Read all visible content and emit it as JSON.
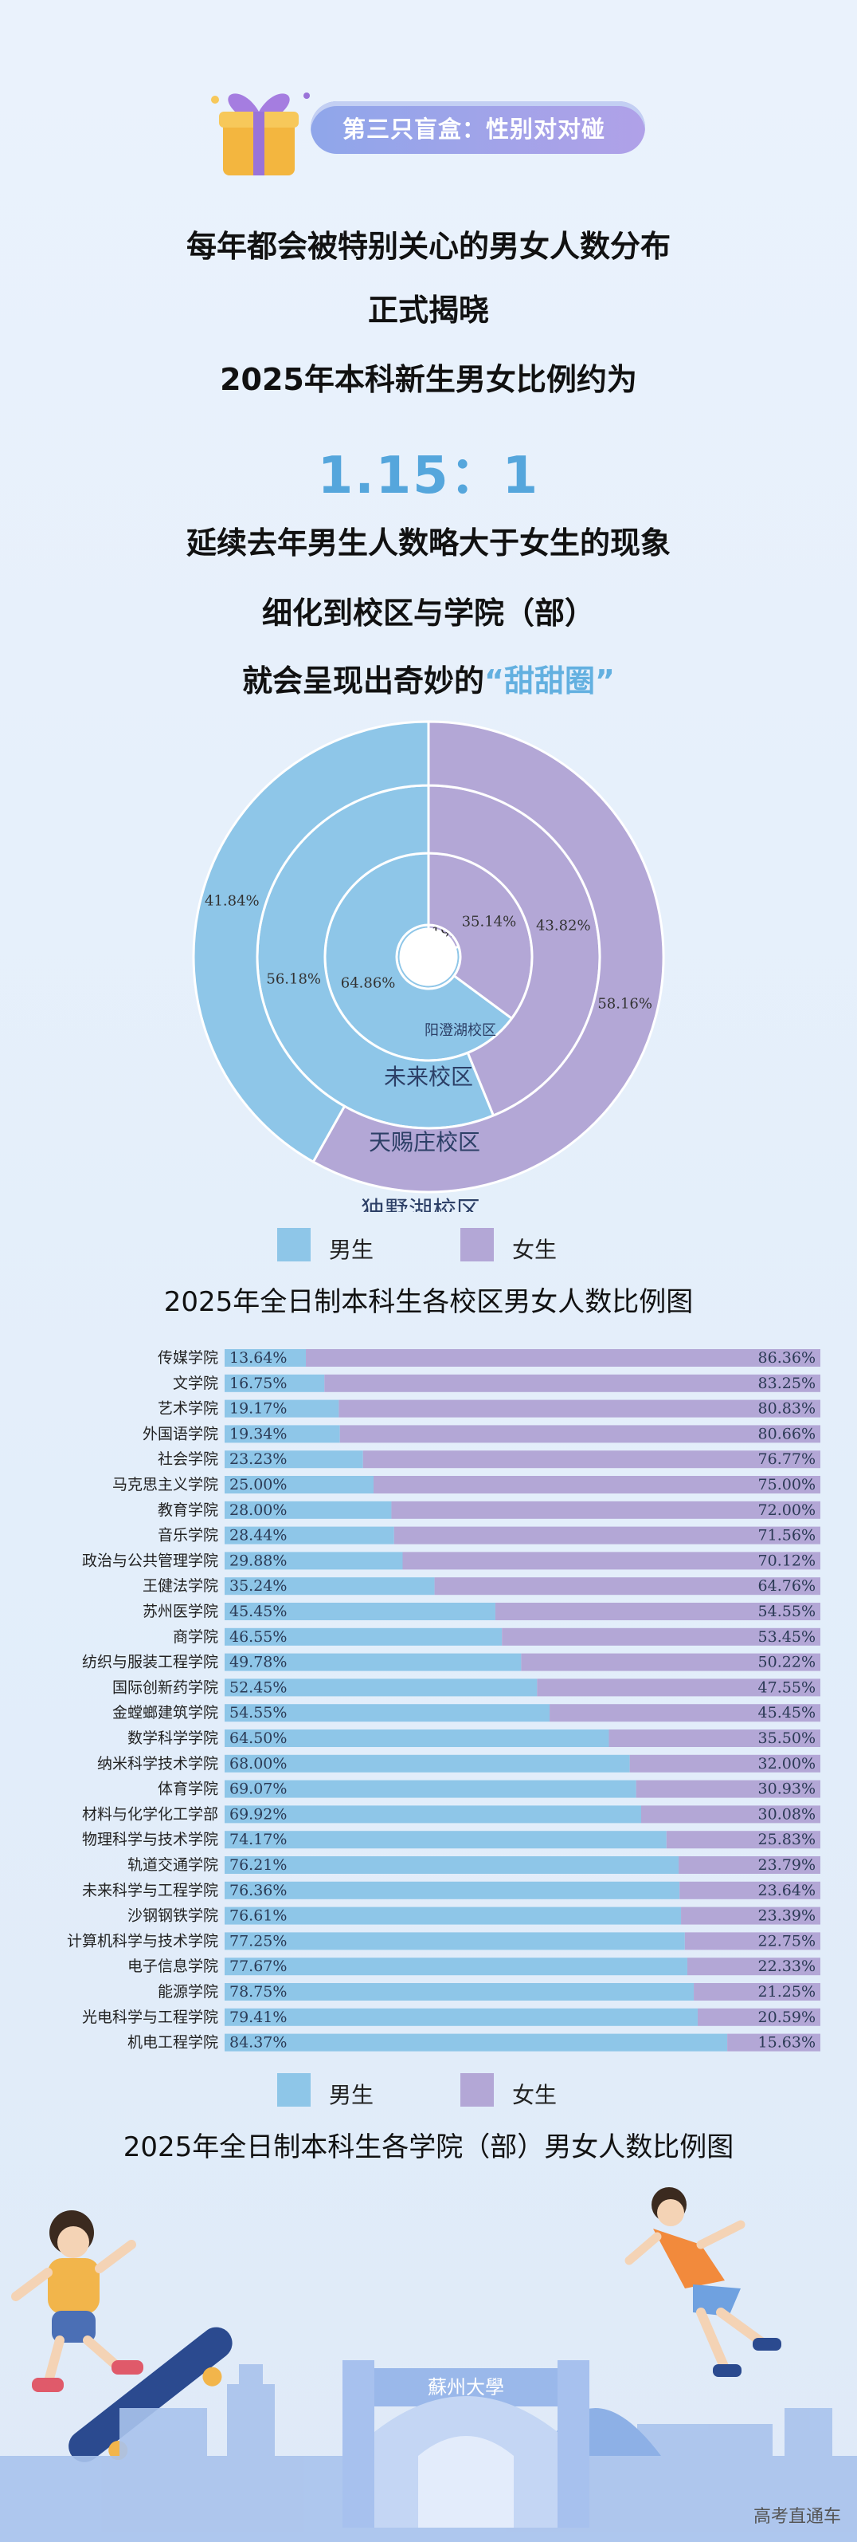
{
  "banner": {
    "label": "第三只盲盒：性别对对碰"
  },
  "intro": {
    "line1": "每年都会被特别关心的男女人数分布",
    "line2": "正式揭晓",
    "line3": "2025年本科新生男女比例约为",
    "ratio": "1.15：1",
    "line4": "延续去年男生人数略大于女生的现象",
    "line5": "细化到校区与学院（部）",
    "line6a": "就会呈现出奇妙的",
    "line6b": "“甜甜圈”"
  },
  "colors": {
    "male": "#8ec6e8",
    "female": "#b3a7d6"
  },
  "legend": {
    "male": "男生",
    "female": "女生"
  },
  "chart_data": [
    {
      "type": "pie",
      "title": "2025年全日制本科生各校区男女人数比例图",
      "rings": [
        {
          "name": "阳澄湖校区",
          "male": 80.17,
          "female": 19.83,
          "male_label": "80.17%",
          "female_label": "19.83%"
        },
        {
          "name": "未来校区",
          "male": 64.86,
          "female": 35.14,
          "male_label": "64.86%",
          "female_label": "35.14%"
        },
        {
          "name": "天赐庄校区",
          "male": 56.18,
          "female": 43.82,
          "male_label": "56.18%",
          "female_label": "43.82%"
        },
        {
          "name": "独墅湖校区",
          "male": 41.84,
          "female": 58.16,
          "male_label": "41.84%",
          "female_label": "58.16%"
        }
      ],
      "legend": [
        "男生",
        "女生"
      ]
    },
    {
      "type": "bar",
      "orientation": "horizontal-stacked",
      "title": "2025年全日制本科生各学院（部）男女人数比例图",
      "categories": [
        "传媒学院",
        "文学院",
        "艺术学院",
        "外国语学院",
        "社会学院",
        "马克思主义学院",
        "教育学院",
        "音乐学院",
        "政治与公共管理学院",
        "王健法学院",
        "苏州医学院",
        "商学院",
        "纺织与服装工程学院",
        "国际创新药学院",
        "金螳螂建筑学院",
        "数学科学学院",
        "纳米科学技术学院",
        "体育学院",
        "材料与化学化工学部",
        "物理科学与技术学院",
        "轨道交通学院",
        "未来科学与工程学院",
        "沙钢钢铁学院",
        "计算机科学与技术学院",
        "电子信息学院",
        "能源学院",
        "光电科学与工程学院",
        "机电工程学院"
      ],
      "series": [
        {
          "name": "男生",
          "values": [
            13.64,
            16.75,
            19.17,
            19.34,
            23.23,
            25.0,
            28.0,
            28.44,
            29.88,
            35.24,
            45.45,
            46.55,
            49.78,
            52.45,
            54.55,
            64.5,
            68.0,
            69.07,
            69.92,
            74.17,
            76.21,
            76.36,
            76.61,
            77.25,
            77.67,
            78.75,
            79.41,
            84.37
          ],
          "labels": [
            "13.64%",
            "16.75%",
            "19.17%",
            "19.34%",
            "23.23%",
            "25.00%",
            "28.00%",
            "28.44%",
            "29.88%",
            "35.24%",
            "45.45%",
            "46.55%",
            "49.78%",
            "52.45%",
            "54.55%",
            "64.50%",
            "68.00%",
            "69.07%",
            "69.92%",
            "74.17%",
            "76.21%",
            "76.36%",
            "76.61%",
            "77.25%",
            "77.67%",
            "78.75%",
            "79.41%",
            "84.37%"
          ]
        },
        {
          "name": "女生",
          "values": [
            86.36,
            83.25,
            80.83,
            80.66,
            76.77,
            75.0,
            72.0,
            71.56,
            70.12,
            64.76,
            54.55,
            53.45,
            50.22,
            47.55,
            45.45,
            35.5,
            32.0,
            30.93,
            30.08,
            25.83,
            23.79,
            23.64,
            23.39,
            22.75,
            22.33,
            21.25,
            20.59,
            15.63
          ],
          "labels": [
            "86.36%",
            "83.25%",
            "80.83%",
            "80.66%",
            "76.77%",
            "75.00%",
            "72.00%",
            "71.56%",
            "70.12%",
            "64.76%",
            "54.55%",
            "53.45%",
            "50.22%",
            "47.55%",
            "45.45%",
            "35.50%",
            "32.00%",
            "30.93%",
            "30.08%",
            "25.83%",
            "23.79%",
            "23.64%",
            "23.39%",
            "22.75%",
            "22.33%",
            "21.25%",
            "20.59%",
            "15.63%"
          ]
        }
      ],
      "xlim": [
        0,
        100
      ],
      "legend": [
        "男生",
        "女生"
      ]
    }
  ],
  "campus_gate": {
    "sign": "蘇州大學"
  },
  "watermark": "高考直通车"
}
